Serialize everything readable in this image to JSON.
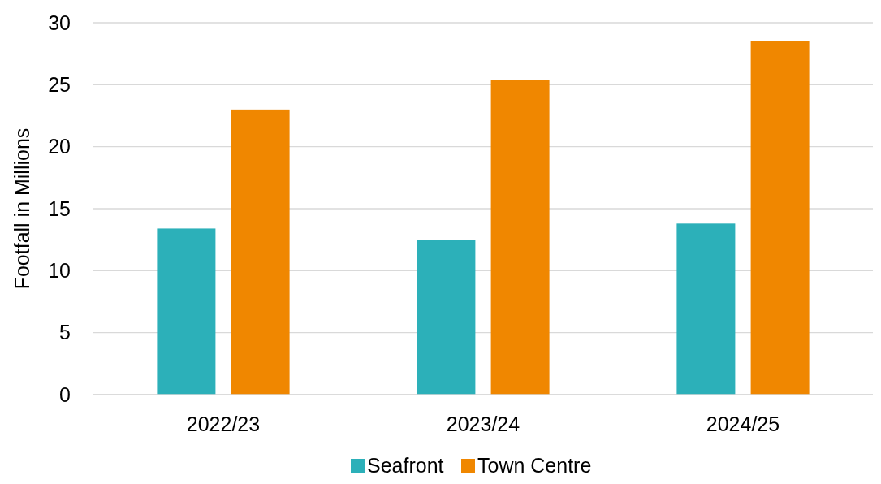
{
  "chart_data": {
    "type": "bar",
    "ylabel": "Footfall in Millions",
    "categories": [
      "2022/23",
      "2023/24",
      "2024/25"
    ],
    "series": [
      {
        "name": "Seafront",
        "color": "#2cb0b9",
        "values": [
          13.4,
          12.5,
          13.8
        ]
      },
      {
        "name": "Town Centre",
        "color": "#f08700",
        "values": [
          23.0,
          25.4,
          28.5
        ]
      }
    ],
    "ylim": [
      0,
      30
    ],
    "yticks": [
      0,
      5,
      10,
      15,
      20,
      25,
      30
    ],
    "grid": "y",
    "legend": "bottom"
  }
}
